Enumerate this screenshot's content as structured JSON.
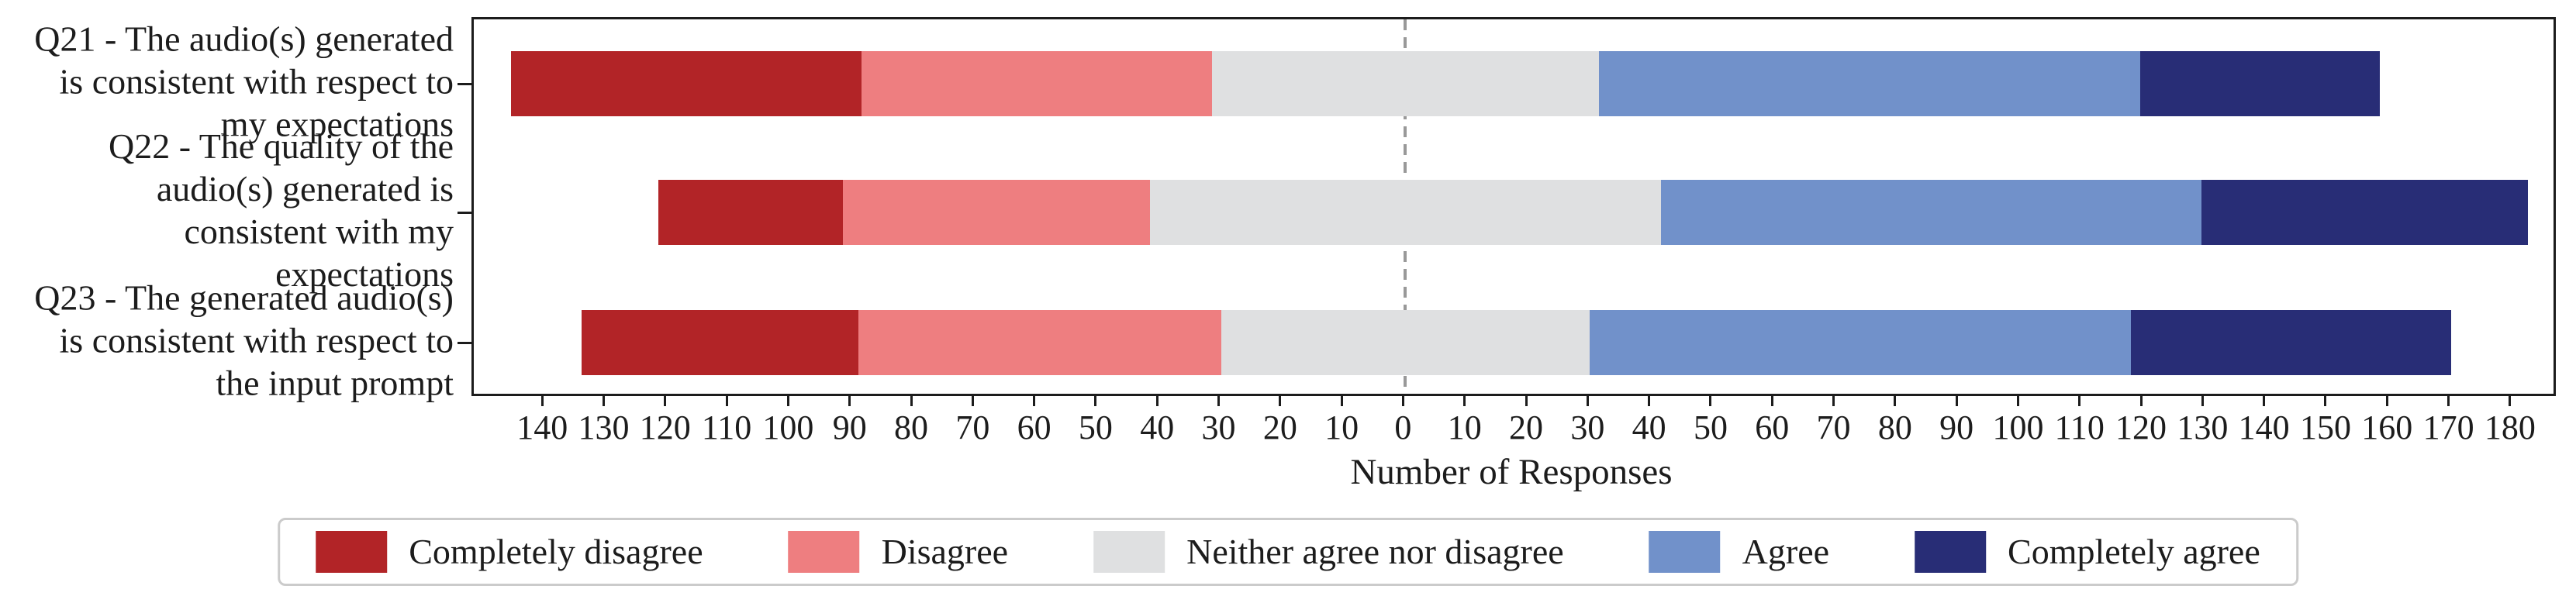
{
  "chart_data": {
    "type": "bar",
    "subtype": "diverging-stacked-likert",
    "orientation": "horizontal",
    "title": "",
    "xlabel": "Number of Responses",
    "ylabel": "",
    "grid": false,
    "legend_position": "bottom",
    "categories": [
      {
        "id": "Q21",
        "label_lines": [
          "Q21 - The audio(s) generated",
          "is consistent with respect to",
          "my expectations"
        ]
      },
      {
        "id": "Q22",
        "label_lines": [
          "Q22 - The quality of the",
          "audio(s) generated is",
          "consistent with my",
          "expectations"
        ]
      },
      {
        "id": "Q23",
        "label_lines": [
          "Q23 - The generated audio(s)",
          "is consistent with respect to",
          "the input prompt"
        ]
      }
    ],
    "series": [
      {
        "name": "Completely disagree",
        "color": "#b22427",
        "values": [
          57,
          30,
          45
        ]
      },
      {
        "name": "Disagree",
        "color": "#ee7e80",
        "values": [
          57,
          50,
          59
        ]
      },
      {
        "name": "Neither agree nor disagree",
        "color": "#dfe0e1",
        "values": [
          63,
          83,
          60
        ]
      },
      {
        "name": "Agree",
        "color": "#7191ca",
        "values": [
          88,
          88,
          88
        ]
      },
      {
        "name": "Completely agree",
        "color": "#282d76",
        "values": [
          39,
          53,
          52
        ]
      }
    ],
    "totals_per_category": [
      304,
      304,
      304
    ],
    "neutral_series_centered_on_zero": "Neither agree nor disagree",
    "xlim": [
      -151.5,
      186.7
    ],
    "xtick_values": [
      -140,
      -130,
      -120,
      -110,
      -100,
      -90,
      -80,
      -70,
      -60,
      -50,
      -40,
      -30,
      -20,
      -10,
      0,
      10,
      20,
      30,
      40,
      50,
      60,
      70,
      80,
      90,
      100,
      110,
      120,
      130,
      140,
      150,
      160,
      170,
      180
    ],
    "xtick_labels": [
      "140",
      "130",
      "120",
      "110",
      "100",
      "90",
      "80",
      "70",
      "60",
      "50",
      "40",
      "30",
      "20",
      "10",
      "0",
      "10",
      "20",
      "30",
      "40",
      "50",
      "60",
      "70",
      "80",
      "90",
      "100",
      "110",
      "120",
      "130",
      "140",
      "150",
      "160",
      "170",
      "180"
    ],
    "zero_line": {
      "x": 0,
      "style": "dashed",
      "color": "#999999"
    }
  },
  "colors": {
    "axis": "#1c1c1c",
    "text": "#1c1c1c",
    "legend_border": "#cbcbcb",
    "background": "#ffffff"
  }
}
